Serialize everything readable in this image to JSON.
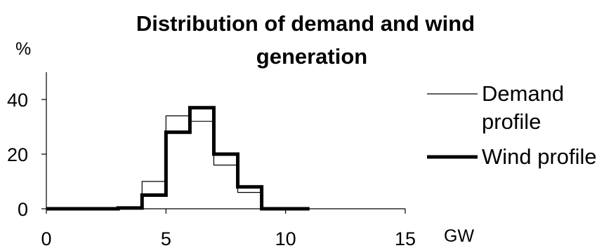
{
  "chart_data": {
    "type": "line",
    "title_line1": "Distribution of demand and wind",
    "title_line2": "generation",
    "xlabel": "GW",
    "ylabel": "%",
    "xlim": [
      0,
      15
    ],
    "ylim": [
      0,
      50
    ],
    "x_ticks": [
      "0",
      "5",
      "10",
      "15"
    ],
    "y_ticks": [
      "0",
      "20",
      "40"
    ],
    "grid": false,
    "legend_position": "right",
    "step_width": 1,
    "series": [
      {
        "name_line1": "Demand",
        "name_line2": "profile",
        "style": "thin",
        "color": "#000000",
        "x": [
          0,
          1,
          2,
          3,
          4,
          5,
          6,
          7,
          8,
          9,
          10
        ],
        "values": [
          0,
          0,
          0,
          0,
          10,
          34,
          32,
          16,
          6,
          0,
          0
        ]
      },
      {
        "name_line1": "Wind profile",
        "style": "thick",
        "color": "#000000",
        "x": [
          0,
          1,
          2,
          3,
          4,
          5,
          6,
          7,
          8,
          9,
          10
        ],
        "values": [
          0,
          0,
          0,
          0.3,
          5,
          28,
          37,
          20,
          8,
          0,
          0
        ]
      }
    ]
  }
}
